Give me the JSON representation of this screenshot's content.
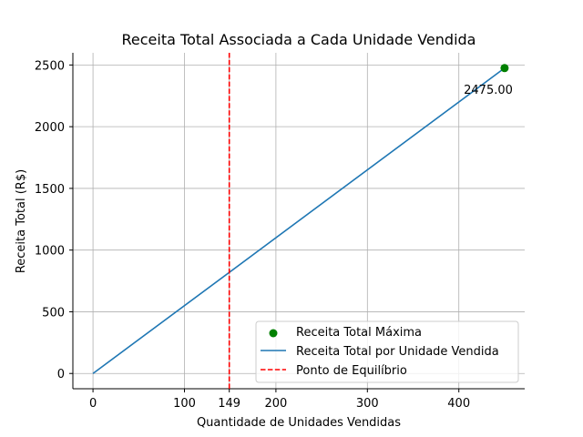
{
  "chart_data": {
    "type": "line",
    "title": "Receita Total Associada a Cada Unidade Vendida",
    "xlabel": "Quantidade de Unidades Vendidas",
    "ylabel": "Receita Total (R$)",
    "xlim": [
      -22,
      472
    ],
    "ylim": [
      -123.75,
      2598.75
    ],
    "xticks": [
      0,
      100,
      149,
      200,
      300,
      400
    ],
    "yticks": [
      0,
      500,
      1000,
      1500,
      2000,
      2500
    ],
    "grid": true,
    "legend_position": "lower-right",
    "series": [
      {
        "name": "Receita Total por Unidade Vendida",
        "type": "line",
        "color": "#1f77b4",
        "x": [
          0,
          450
        ],
        "y": [
          0,
          2475
        ]
      }
    ],
    "max_point": {
      "name": "Receita Total Máxima",
      "x": 450,
      "y": 2475,
      "color": "#008000",
      "label": "2475.00"
    },
    "vline": {
      "name": "Ponto de Equilíbrio",
      "x": 149,
      "color": "#ff0000"
    }
  }
}
